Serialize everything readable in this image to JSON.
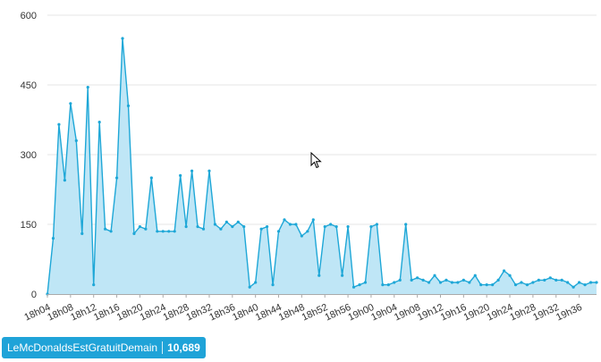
{
  "colors": {
    "line": "#1ea7d7",
    "fill": "#bfe6f6",
    "grid": "#e6e6e6",
    "badge": "#1fa3d8"
  },
  "badge": {
    "hashtag": "LeMcDonaldsEstGratuitDemain",
    "count": "10,689"
  },
  "cursor_icon": "arrow-cursor-icon",
  "chart_data": {
    "type": "area",
    "title": "",
    "xlabel": "",
    "ylabel": "",
    "ylim": [
      0,
      600
    ],
    "y_ticks": [
      0,
      150,
      300,
      450,
      600
    ],
    "grid": true,
    "x_ticks": [
      "18h04",
      "18h08",
      "18h12",
      "18h16",
      "18h20",
      "18h24",
      "18h28",
      "18h32",
      "18h36",
      "18h40",
      "18h44",
      "18h48",
      "18h52",
      "18h56",
      "19h00",
      "19h04",
      "19h08",
      "19h12",
      "19h16",
      "19h20",
      "19h24",
      "19h28",
      "19h32",
      "19h36"
    ],
    "values": [
      0,
      120,
      365,
      245,
      410,
      330,
      130,
      445,
      20,
      370,
      140,
      135,
      250,
      550,
      405,
      130,
      145,
      140,
      250,
      135,
      135,
      135,
      135,
      255,
      145,
      265,
      145,
      140,
      265,
      150,
      140,
      155,
      145,
      155,
      145,
      15,
      25,
      140,
      145,
      20,
      135,
      160,
      150,
      150,
      125,
      135,
      160,
      40,
      145,
      150,
      145,
      40,
      145,
      15,
      20,
      25,
      145,
      150,
      20,
      20,
      25,
      30,
      150,
      30,
      35,
      30,
      25,
      40,
      25,
      30,
      25,
      25,
      30,
      25,
      40,
      20,
      20,
      20,
      30,
      50,
      40,
      20,
      25,
      20,
      25,
      30,
      30,
      35,
      30,
      30,
      25,
      15,
      25,
      20,
      25,
      25
    ]
  }
}
